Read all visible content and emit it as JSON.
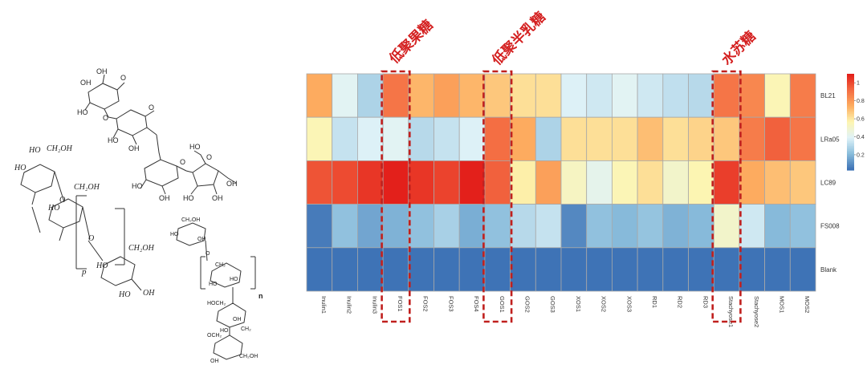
{
  "annotations": {
    "fos": "低聚果糖",
    "gos": "低聚半乳糖",
    "stachyose": "水苏糖"
  },
  "structure_labels": {
    "p": "p",
    "n": "n"
  },
  "colors": {
    "highlight_box": "#c0201e",
    "annotation_text": "#d42020",
    "cell_border": "#a8a8a8",
    "colorscale": [
      "#3e73b6",
      "#8bbedc",
      "#e0f3f8",
      "#fdf5b0",
      "#fdad60",
      "#f46d43",
      "#e3201b"
    ]
  },
  "chart_data": {
    "type": "heatmap",
    "columns": [
      "Inulin1",
      "Inulin2",
      "Inulin3",
      "FOS1",
      "FOS2",
      "FOS3",
      "FOS4",
      "GOS1",
      "GOS2",
      "GOS3",
      "XOS1",
      "XOS2",
      "XOS3",
      "RD1",
      "RD2",
      "RD3",
      "Stachyose1",
      "Stachyose2",
      "MOS1",
      "MOS2"
    ],
    "rows": [
      "BL21",
      "LRa05",
      "LC89",
      "FS008",
      "Blank"
    ],
    "values": [
      [
        0.75,
        0.4,
        0.28,
        0.9,
        0.72,
        0.78,
        0.72,
        0.68,
        0.62,
        0.62,
        0.38,
        0.35,
        0.4,
        0.35,
        0.32,
        0.3,
        0.9,
        0.85,
        0.55,
        0.88
      ],
      [
        0.55,
        0.33,
        0.38,
        0.4,
        0.3,
        0.33,
        0.38,
        0.92,
        0.75,
        0.28,
        0.62,
        0.62,
        0.62,
        0.7,
        0.62,
        0.65,
        0.68,
        0.88,
        0.95,
        0.9
      ],
      [
        0.98,
        1.0,
        1.05,
        1.1,
        1.05,
        1.02,
        1.1,
        0.95,
        0.58,
        0.78,
        0.52,
        0.42,
        0.55,
        0.62,
        0.5,
        0.56,
        1.03,
        0.75,
        0.7,
        0.68
      ],
      [
        0.05,
        0.22,
        0.15,
        0.18,
        0.22,
        0.27,
        0.17,
        0.22,
        0.3,
        0.33,
        0.08,
        0.22,
        0.2,
        0.23,
        0.18,
        0.2,
        0.5,
        0.35,
        0.2,
        0.22
      ],
      [
        0.03,
        0.03,
        0.03,
        0.03,
        0.03,
        0.03,
        0.03,
        0.03,
        0.03,
        0.03,
        0.03,
        0.03,
        0.03,
        0.03,
        0.03,
        0.03,
        0.03,
        0.03,
        0.03,
        0.03
      ]
    ],
    "colorbar": {
      "ticks": [
        1,
        0.8,
        0.6,
        0.4,
        0.2
      ],
      "range": [
        0.03,
        1.1
      ]
    },
    "highlighted_columns": [
      "FOS1",
      "GOS1",
      "Stachyose1"
    ]
  }
}
